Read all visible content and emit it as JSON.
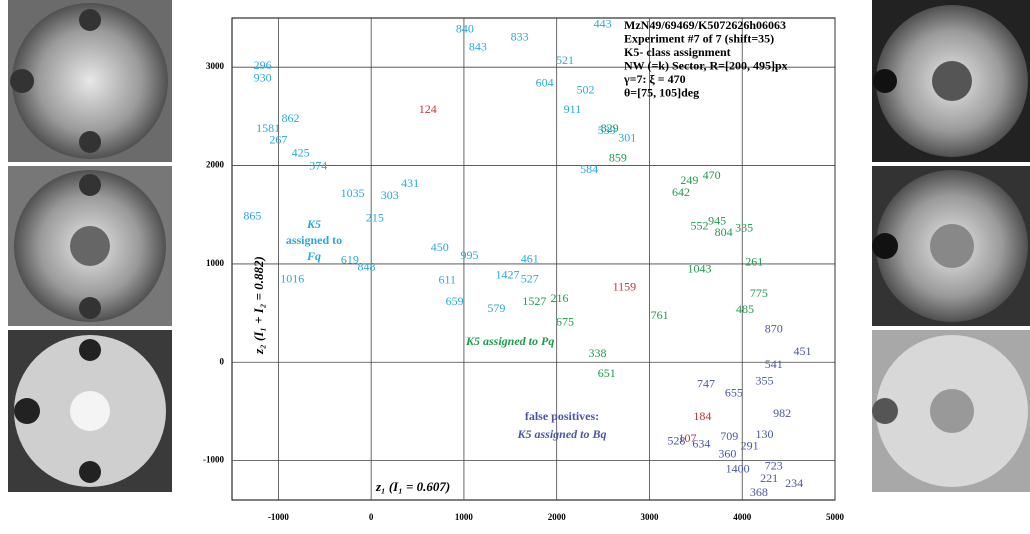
{
  "chart_data": {
    "type": "scatter",
    "title_lines": [
      "MzN49/69469/K5072626h06063",
      "Experiment #7 of 7 (shift=35)",
      "K5- class assignment",
      "NW (=k) Sector, R=[200, 495]px",
      "γ=7:   ξ  = 470",
      "θ=[75, 105]deg"
    ],
    "x_label": "z₁   (I₁ = 0.607)",
    "y_label": "z₂  (I₁ + I₂ = 0.882)",
    "annotations": [
      "K5",
      "assigned to",
      "Fq",
      "K5 assigned to  Pq",
      "false positives:",
      "K5 assigned to  Bq"
    ],
    "xlim": [
      -1500,
      5000
    ],
    "ylim": [
      -1400,
      3500
    ],
    "xticks": [
      -1000,
      0,
      1000,
      2000,
      3000,
      4000,
      5000
    ],
    "yticks": [
      -1000,
      0,
      1000,
      2000,
      3000
    ],
    "grid": true,
    "series": [
      {
        "color": "#2aa9df",
        "x": [
          2495,
          1600,
          1150,
          2090,
          -1170,
          -1170,
          -870,
          -1110,
          -1000,
          -760,
          -570,
          -1280,
          -850,
          -230,
          -50,
          40,
          200,
          820,
          900,
          1350,
          1470,
          1710,
          1060,
          2310,
          2540,
          2760,
          2350,
          2170,
          740,
          420,
          -200,
          1710,
          1010,
          1870
        ],
        "values": [
          3430,
          3300,
          3200,
          3060,
          3010,
          2880,
          2470,
          2370,
          2250,
          2120,
          1990,
          1480,
          840,
          1030,
          960,
          1460,
          1690,
          830,
          610,
          540,
          880,
          840,
          1080,
          2760,
          2350,
          2270,
          1950,
          2560,
          1160,
          1810,
          1710,
          1040,
          3380,
          2830
        ],
        "labels": [
          443,
          833,
          843,
          521,
          296,
          930,
          862,
          1581,
          267,
          425,
          374,
          865,
          1016,
          619,
          848,
          215,
          303,
          611,
          659,
          579,
          1427,
          527,
          995,
          502,
          539,
          301,
          584,
          911,
          450,
          431,
          1035,
          461,
          840,
          604
        ]
      },
      {
        "color": "#1f9b4c",
        "x": [
          3670,
          3430,
          3340,
          3730,
          4020,
          3800,
          4130,
          4180,
          4030,
          3540,
          2030,
          2090,
          2440,
          2540,
          2570,
          2660,
          3540,
          1760,
          3110
        ],
        "values": [
          1890,
          1840,
          1720,
          1430,
          1360,
          1310,
          1010,
          690,
          530,
          940,
          640,
          400,
          80,
          -120,
          2370,
          2070,
          1380,
          610,
          470
        ],
        "labels": [
          470,
          249,
          642,
          945,
          335,
          804,
          261,
          775,
          485,
          1043,
          216,
          675,
          338,
          651,
          829,
          859,
          552,
          1527,
          761
        ]
      },
      {
        "color": "#4b56a6",
        "x": [
          4340,
          4650,
          4340,
          4240,
          3610,
          3910,
          4430,
          4240,
          4080,
          3290,
          3560,
          3860,
          4340,
          4560,
          4180,
          3950,
          3840,
          4290
        ],
        "values": [
          330,
          100,
          -30,
          -200,
          -230,
          -320,
          -530,
          -740,
          -860,
          -810,
          -840,
          -760,
          -1060,
          -1240,
          -1330,
          -1090,
          -940,
          -1190
        ],
        "labels": [
          870,
          451,
          541,
          355,
          747,
          655,
          982,
          130,
          291,
          528,
          634,
          709,
          723,
          234,
          368,
          1400,
          360,
          221
        ]
      },
      {
        "color": "#c0333a",
        "x": [
          610,
          3410,
          3570,
          2730
        ],
        "values": [
          2560,
          -780,
          -560,
          760
        ],
        "labels": [
          124,
          107,
          184,
          1159
        ]
      }
    ]
  }
}
